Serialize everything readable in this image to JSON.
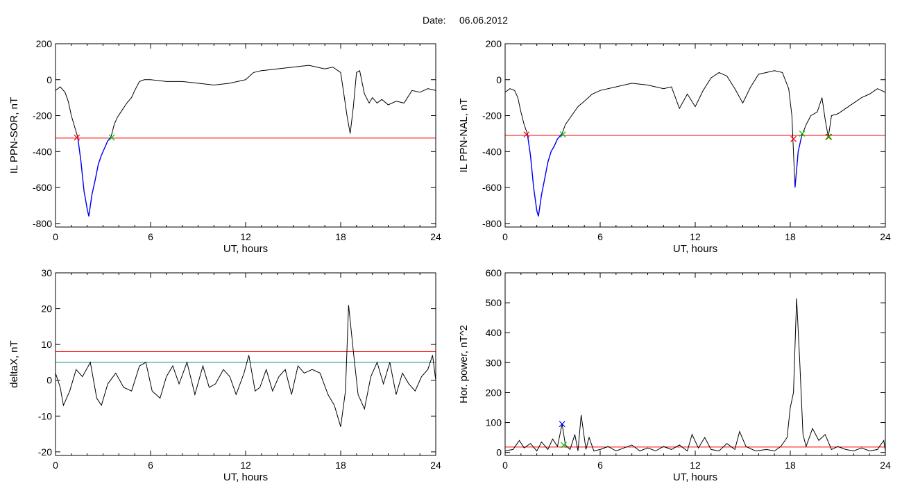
{
  "figure": {
    "date_label": "Date:",
    "date_value": "06.06.2012"
  },
  "colors": {
    "trace": "#000000",
    "threshold_red": "#ff0000",
    "threshold_teal": "#008b8b",
    "interval_blue": "#0000ff",
    "marker_red": "#ff0000",
    "marker_green": "#00c000",
    "marker_blue": "#0000ff"
  },
  "chart_data": [
    {
      "type": "line",
      "panel": "top-left",
      "ylabel": "IL PPN-SOR, nT",
      "xlabel": "UT, hours",
      "xlim": [
        0,
        24
      ],
      "ylim": [
        -820,
        200
      ],
      "xticks": [
        0,
        6,
        12,
        18,
        24
      ],
      "yticks": [
        -800,
        -600,
        -400,
        -200,
        0,
        200
      ],
      "thresholds": [
        {
          "y": -325,
          "color": "red"
        }
      ],
      "highlight_intervals": [
        {
          "x0": 1.35,
          "x1": 3.55,
          "color": "blue"
        }
      ],
      "markers": [
        {
          "x": 1.35,
          "y": -322,
          "symbol": "x",
          "color": "red"
        },
        {
          "x": 3.55,
          "y": -322,
          "symbol": "x",
          "color": "green"
        }
      ],
      "series": [
        {
          "x": [
            0,
            0.3,
            0.6,
            0.8,
            1.0,
            1.2,
            1.4,
            1.6,
            1.8,
            2.0,
            2.1,
            2.3,
            2.5,
            2.7,
            2.9,
            3.1,
            3.3,
            3.5,
            3.7,
            3.9,
            4.2,
            4.5,
            4.8,
            5.0,
            5.3,
            5.6,
            6.0,
            7,
            8,
            9,
            10,
            11,
            12,
            12.5,
            13,
            14,
            15,
            16,
            17,
            17.5,
            18.0,
            18.2,
            18.4,
            18.6,
            18.8,
            19.0,
            19.2,
            19.5,
            19.8,
            20.0,
            20.3,
            20.6,
            21.0,
            21.5,
            22.0,
            22.5,
            23.0,
            23.5,
            24
          ],
          "y": [
            -60,
            -40,
            -70,
            -120,
            -200,
            -260,
            -320,
            -450,
            -620,
            -720,
            -760,
            -640,
            -560,
            -470,
            -420,
            -380,
            -340,
            -320,
            -250,
            -210,
            -170,
            -130,
            -100,
            -60,
            -10,
            0,
            0,
            -10,
            -10,
            -20,
            -30,
            -20,
            0,
            40,
            50,
            60,
            70,
            80,
            60,
            70,
            40,
            -80,
            -200,
            -300,
            -150,
            40,
            50,
            -80,
            -130,
            -100,
            -130,
            -110,
            -140,
            -120,
            -130,
            -60,
            -70,
            -50,
            -60
          ]
        }
      ]
    },
    {
      "type": "line",
      "panel": "top-right",
      "ylabel": "IL PPN-NAL, nT",
      "xlabel": "UT, hours",
      "xlim": [
        0,
        24
      ],
      "ylim": [
        -820,
        200
      ],
      "xticks": [
        0,
        6,
        12,
        18,
        24
      ],
      "yticks": [
        -800,
        -600,
        -400,
        -200,
        0,
        200
      ],
      "thresholds": [
        {
          "y": -310,
          "color": "red"
        }
      ],
      "highlight_intervals": [
        {
          "x0": 1.35,
          "x1": 3.65,
          "color": "blue"
        },
        {
          "x0": 18.2,
          "x1": 18.75,
          "color": "blue"
        }
      ],
      "markers": [
        {
          "x": 1.35,
          "y": -305,
          "symbol": "x",
          "color": "red"
        },
        {
          "x": 3.65,
          "y": -305,
          "symbol": "x",
          "color": "green"
        },
        {
          "x": 18.2,
          "y": -330,
          "symbol": "x",
          "color": "red"
        },
        {
          "x": 18.75,
          "y": -300,
          "symbol": "x",
          "color": "green"
        },
        {
          "x": 20.4,
          "y": -318,
          "symbol": "x",
          "color": "red"
        },
        {
          "x": 20.45,
          "y": -318,
          "symbol": "x",
          "color": "green"
        }
      ],
      "series": [
        {
          "x": [
            0,
            0.3,
            0.6,
            0.8,
            1.0,
            1.2,
            1.4,
            1.6,
            1.8,
            2.0,
            2.1,
            2.3,
            2.5,
            2.7,
            2.9,
            3.1,
            3.3,
            3.6,
            3.8,
            4.2,
            4.6,
            5.0,
            5.5,
            6.0,
            7,
            8,
            9,
            10,
            10.5,
            11,
            11.5,
            12,
            12.5,
            13,
            13.5,
            14,
            14.5,
            15,
            15.5,
            16,
            17,
            17.5,
            17.9,
            18.1,
            18.3,
            18.5,
            18.7,
            19.0,
            19.3,
            19.7,
            20.0,
            20.2,
            20.4,
            20.6,
            21.0,
            21.5,
            22.0,
            22.5,
            23.0,
            23.5,
            24
          ],
          "y": [
            -70,
            -50,
            -60,
            -100,
            -180,
            -250,
            -300,
            -420,
            -600,
            -730,
            -760,
            -640,
            -550,
            -460,
            -400,
            -370,
            -330,
            -300,
            -250,
            -200,
            -150,
            -120,
            -80,
            -60,
            -40,
            -20,
            -30,
            -50,
            -40,
            -160,
            -80,
            -150,
            -60,
            10,
            40,
            20,
            -50,
            -130,
            -40,
            30,
            50,
            40,
            -50,
            -200,
            -600,
            -400,
            -320,
            -250,
            -200,
            -180,
            -100,
            -220,
            -320,
            -200,
            -190,
            -160,
            -130,
            -100,
            -80,
            -50,
            -70
          ]
        }
      ]
    },
    {
      "type": "line",
      "panel": "bottom-left",
      "ylabel": "deltaX, nT",
      "xlabel": "UT, hours",
      "xlim": [
        0,
        24
      ],
      "ylim": [
        -21,
        30
      ],
      "xticks": [
        0,
        6,
        12,
        18,
        24
      ],
      "yticks": [
        -20,
        -10,
        0,
        10,
        20,
        30
      ],
      "thresholds": [
        {
          "y": 8,
          "color": "red"
        },
        {
          "y": 5,
          "color": "teal"
        }
      ],
      "series": [
        {
          "x": [
            0,
            0.3,
            0.5,
            0.9,
            1.3,
            1.7,
            2.2,
            2.6,
            2.9,
            3.3,
            3.8,
            4.3,
            4.8,
            5.3,
            5.7,
            6.1,
            6.6,
            7.0,
            7.4,
            7.8,
            8.3,
            8.8,
            9.3,
            9.7,
            10.1,
            10.6,
            11.0,
            11.4,
            11.9,
            12.2,
            12.6,
            12.9,
            13.3,
            13.7,
            14.1,
            14.5,
            14.9,
            15.3,
            15.7,
            16.2,
            16.7,
            17.2,
            17.6,
            18.0,
            18.3,
            18.5,
            18.8,
            19.1,
            19.5,
            19.9,
            20.3,
            20.7,
            21.1,
            21.5,
            21.9,
            22.3,
            22.7,
            23.1,
            23.5,
            23.8,
            24
          ],
          "y": [
            2,
            -2,
            -7,
            -3,
            3,
            1,
            5,
            -5,
            -7,
            -1,
            2,
            -2,
            -3,
            4,
            5,
            -3,
            -5,
            1,
            4,
            -1,
            5,
            -4,
            4,
            -2,
            -1,
            3,
            1,
            -4,
            2,
            7,
            -3,
            -2,
            3,
            -3,
            1,
            3,
            -4,
            4,
            2,
            3,
            2,
            -4,
            -7,
            -13,
            -3,
            21,
            8,
            -4,
            -8,
            1,
            5,
            -1,
            5,
            -4,
            2,
            -1,
            -3,
            1,
            3,
            7,
            0
          ]
        }
      ]
    },
    {
      "type": "line",
      "panel": "bottom-right",
      "ylabel": "Hor. power, nT^2",
      "xlabel": "UT, hours",
      "xlim": [
        0,
        24
      ],
      "ylim": [
        -10,
        600
      ],
      "xticks": [
        0,
        6,
        12,
        18,
        24
      ],
      "yticks": [
        0,
        100,
        200,
        300,
        400,
        500,
        600
      ],
      "thresholds": [
        {
          "y": 18,
          "color": "red"
        }
      ],
      "markers": [
        {
          "x": 3.6,
          "y": 95,
          "symbol": "x",
          "color": "blue"
        },
        {
          "x": 3.7,
          "y": 25,
          "symbol": "x",
          "color": "green"
        }
      ],
      "series": [
        {
          "x": [
            0,
            0.5,
            0.9,
            1.2,
            1.6,
            2.0,
            2.3,
            2.7,
            3.0,
            3.3,
            3.6,
            3.8,
            4.1,
            4.4,
            4.6,
            4.8,
            5.1,
            5.3,
            5.6,
            6.0,
            6.5,
            7.0,
            7.5,
            8.0,
            8.5,
            9.0,
            9.5,
            10.0,
            10.5,
            11.0,
            11.5,
            11.8,
            12.2,
            12.6,
            13.0,
            13.5,
            14.0,
            14.5,
            14.8,
            15.2,
            15.8,
            16.5,
            17.0,
            17.4,
            17.8,
            18.0,
            18.2,
            18.4,
            18.6,
            18.8,
            19.0,
            19.4,
            19.8,
            20.2,
            20.6,
            21.0,
            21.5,
            22.0,
            22.5,
            23.0,
            23.5,
            23.9,
            24
          ],
          "y": [
            5,
            10,
            40,
            15,
            30,
            5,
            35,
            10,
            45,
            20,
            95,
            25,
            10,
            60,
            5,
            125,
            10,
            50,
            5,
            10,
            20,
            5,
            15,
            25,
            5,
            15,
            5,
            20,
            10,
            25,
            5,
            60,
            15,
            50,
            10,
            5,
            30,
            10,
            70,
            20,
            5,
            10,
            5,
            20,
            50,
            150,
            200,
            515,
            300,
            60,
            20,
            80,
            40,
            60,
            10,
            20,
            10,
            5,
            15,
            5,
            10,
            40,
            5
          ]
        }
      ]
    }
  ]
}
